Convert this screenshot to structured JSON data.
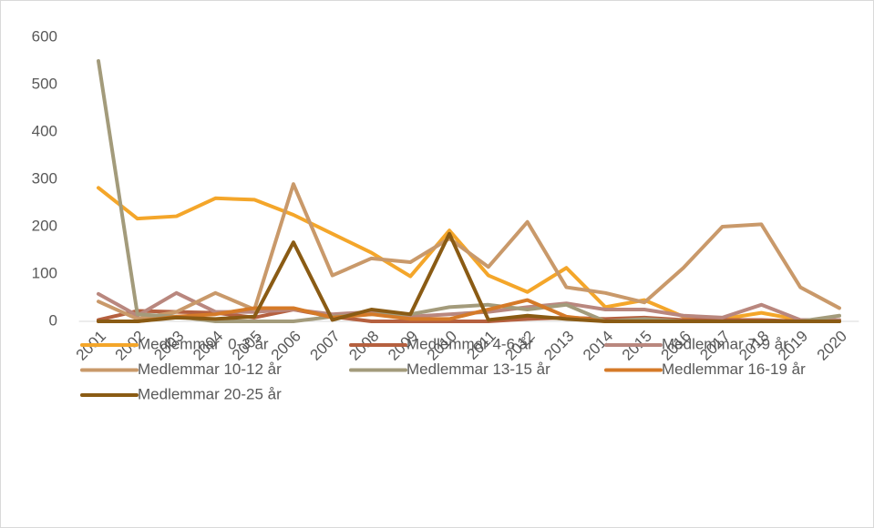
{
  "chart_data": {
    "type": "line",
    "categories": [
      "2001",
      "2002",
      "2003",
      "2004",
      "2005",
      "2006",
      "2007",
      "2008",
      "2009",
      "2010",
      "2011",
      "2012",
      "2013",
      "2014",
      "2015",
      "2016",
      "2017",
      "2018",
      "2019",
      "2020"
    ],
    "series": [
      {
        "name": "Medlemmar  0-3 år",
        "color": "#f4a62a",
        "values": [
          282,
          217,
          222,
          260,
          257,
          225,
          185,
          145,
          95,
          192,
          97,
          62,
          113,
          30,
          45,
          10,
          5,
          18,
          3,
          3
        ]
      },
      {
        "name": "Medlemmar 4-6 år",
        "color": "#b5603f",
        "values": [
          3,
          22,
          20,
          18,
          8,
          25,
          10,
          0,
          0,
          0,
          0,
          5,
          8,
          5,
          8,
          3,
          3,
          3,
          0,
          0
        ]
      },
      {
        "name": "Medlemmar 7-9 år",
        "color": "#b9877e",
        "values": [
          58,
          12,
          60,
          20,
          20,
          25,
          15,
          20,
          10,
          15,
          20,
          30,
          38,
          25,
          25,
          12,
          8,
          35,
          3,
          3
        ]
      },
      {
        "name": "Medlemmar 10-12 år",
        "color": "#c9996a",
        "values": [
          42,
          5,
          20,
          60,
          25,
          290,
          97,
          133,
          125,
          175,
          115,
          210,
          72,
          60,
          40,
          113,
          200,
          205,
          72,
          28
        ]
      },
      {
        "name": "Medlemmar 13-15 år",
        "color": "#a39b7b",
        "values": [
          550,
          15,
          10,
          0,
          0,
          0,
          10,
          15,
          15,
          30,
          35,
          25,
          35,
          0,
          5,
          0,
          0,
          0,
          0,
          12
        ]
      },
      {
        "name": "Medlemmar 16-19 år",
        "color": "#d57a28",
        "values": [
          0,
          0,
          10,
          15,
          28,
          28,
          8,
          15,
          5,
          5,
          25,
          45,
          10,
          0,
          0,
          0,
          0,
          0,
          0,
          0
        ]
      },
      {
        "name": "Medlemmar 20-25 år",
        "color": "#8a5b14",
        "values": [
          0,
          0,
          8,
          5,
          10,
          167,
          3,
          25,
          15,
          185,
          3,
          12,
          5,
          0,
          0,
          0,
          0,
          0,
          0,
          0
        ]
      }
    ],
    "ylim": [
      0,
      600
    ],
    "yticks": [
      0,
      100,
      200,
      300,
      400,
      500,
      600
    ],
    "grid": false,
    "legend": "bottom"
  }
}
